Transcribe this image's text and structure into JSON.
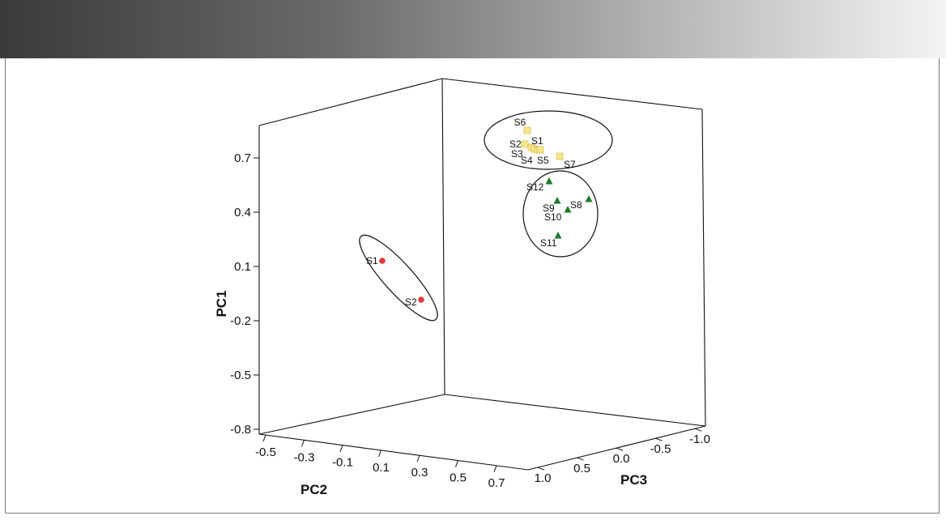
{
  "chart_data": {
    "type": "scatter",
    "title": "",
    "colors": {
      "red": "#e23b3b",
      "yellow": "#f7e58a",
      "yellow_stroke": "#d8c15a",
      "green": "#1f7a2e"
    },
    "axes": {
      "pc1": {
        "label": "PC1",
        "ticks": [
          "0.7",
          "0.4",
          "0.1",
          "-0.2",
          "-0.5",
          "-0.8"
        ]
      },
      "pc2": {
        "label": "PC2",
        "ticks": [
          "-0.5",
          "-0.3",
          "-0.1",
          "0.1",
          "0.3",
          "0.5",
          "0.7"
        ]
      },
      "pc3": {
        "label": "PC3",
        "ticks": [
          "1.0",
          "0.5",
          "0.0",
          "-0.5",
          "-1.0"
        ]
      }
    },
    "series": [
      {
        "marker": "circle",
        "color": "red",
        "points": [
          {
            "label": "S1",
            "pc1": 0.11,
            "pc2": 0.1
          },
          {
            "label": "S2",
            "pc1": -0.1,
            "pc2": 0.35
          }
        ]
      },
      {
        "marker": "square",
        "color": "yellow",
        "points": [
          {
            "label": "S6"
          },
          {
            "label": "S2"
          },
          {
            "label": "S1"
          },
          {
            "label": "S3"
          },
          {
            "label": "S4"
          },
          {
            "label": "S5"
          },
          {
            "label": "S7"
          }
        ]
      },
      {
        "marker": "triangle",
        "color": "green",
        "points": [
          {
            "label": "S12"
          },
          {
            "label": "S9"
          },
          {
            "label": "S8"
          },
          {
            "label": "S10"
          },
          {
            "label": "S11"
          }
        ]
      }
    ]
  }
}
